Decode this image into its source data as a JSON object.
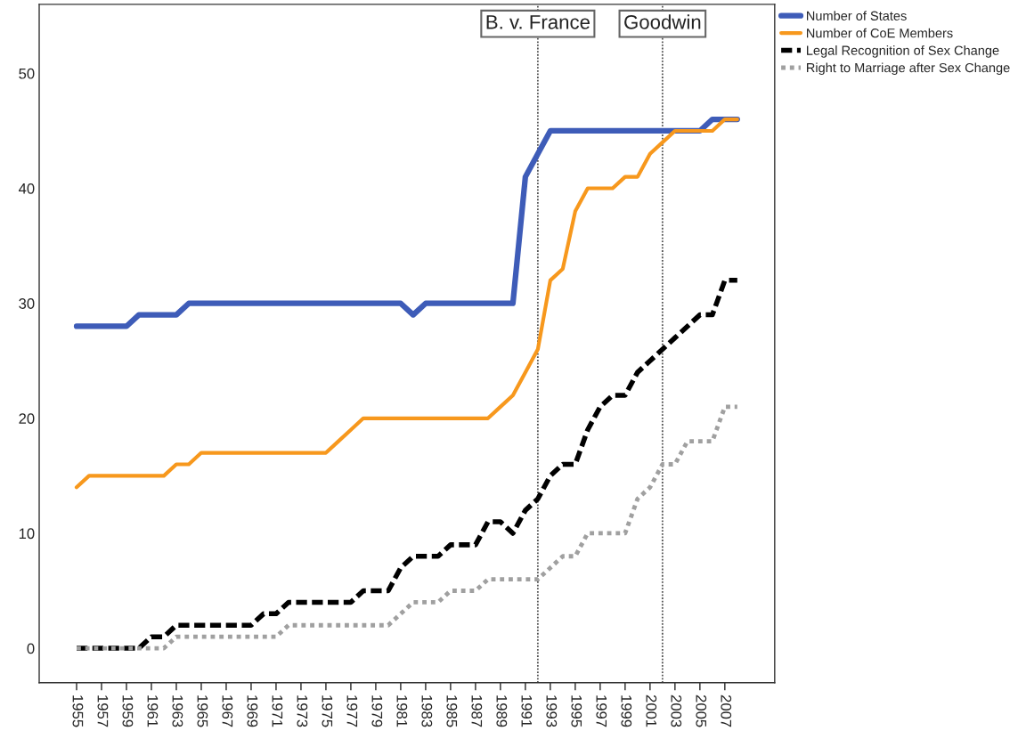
{
  "chart_data": {
    "type": "line",
    "x": [
      1955,
      1956,
      1957,
      1958,
      1959,
      1960,
      1961,
      1962,
      1963,
      1964,
      1965,
      1966,
      1967,
      1968,
      1969,
      1970,
      1971,
      1972,
      1973,
      1974,
      1975,
      1976,
      1977,
      1978,
      1979,
      1980,
      1981,
      1982,
      1983,
      1984,
      1985,
      1986,
      1987,
      1988,
      1989,
      1990,
      1991,
      1992,
      1993,
      1994,
      1995,
      1996,
      1997,
      1998,
      1999,
      2000,
      2001,
      2002,
      2003,
      2004,
      2005,
      2006,
      2007,
      2008
    ],
    "series": [
      {
        "name": "Number of States",
        "color": "#3e5cb8",
        "line_style": "solid",
        "values": [
          28,
          28,
          28,
          28,
          28,
          29,
          29,
          29,
          29,
          30,
          30,
          30,
          30,
          30,
          30,
          30,
          30,
          30,
          30,
          30,
          30,
          30,
          30,
          30,
          30,
          30,
          30,
          29,
          30,
          30,
          30,
          30,
          30,
          30,
          30,
          30,
          41,
          43,
          45,
          45,
          45,
          45,
          45,
          45,
          45,
          45,
          45,
          45,
          45,
          45,
          45,
          46,
          46,
          46
        ]
      },
      {
        "name": "Number of CoE Members",
        "color": "#f7981d",
        "line_style": "solid",
        "values": [
          14,
          15,
          15,
          15,
          15,
          15,
          15,
          15,
          16,
          16,
          17,
          17,
          17,
          17,
          17,
          17,
          17,
          17,
          17,
          17,
          17,
          18,
          19,
          20,
          20,
          20,
          20,
          20,
          20,
          20,
          20,
          20,
          20,
          20,
          21,
          22,
          24,
          26,
          32,
          33,
          38,
          40,
          40,
          40,
          41,
          41,
          43,
          44,
          45,
          45,
          45,
          45,
          46,
          46
        ]
      },
      {
        "name": "Legal Recognition of Sex Change",
        "color": "#000000",
        "line_style": "dashed",
        "values": [
          0,
          0,
          0,
          0,
          0,
          0,
          1,
          1,
          2,
          2,
          2,
          2,
          2,
          2,
          2,
          3,
          3,
          4,
          4,
          4,
          4,
          4,
          4,
          5,
          5,
          5,
          7,
          8,
          8,
          8,
          9,
          9,
          9,
          11,
          11,
          10,
          12,
          13,
          15,
          16,
          16,
          19,
          21,
          22,
          22,
          24,
          25,
          26,
          27,
          28,
          29,
          29,
          32,
          32
        ]
      },
      {
        "name": "Right to Marriage after Sex Change",
        "color": "#a0a0a0",
        "line_style": "dotted",
        "values": [
          0,
          0,
          0,
          0,
          0,
          0,
          0,
          0,
          1,
          1,
          1,
          1,
          1,
          1,
          1,
          1,
          1,
          2,
          2,
          2,
          2,
          2,
          2,
          2,
          2,
          2,
          3,
          4,
          4,
          4,
          5,
          5,
          5,
          6,
          6,
          6,
          6,
          6,
          7,
          8,
          8,
          10,
          10,
          10,
          10,
          13,
          14,
          16,
          16,
          18,
          18,
          18,
          21,
          21
        ]
      }
    ],
    "xlim": [
      1952,
      2011
    ],
    "xticks": [
      1955,
      1957,
      1959,
      1961,
      1963,
      1965,
      1967,
      1969,
      1971,
      1973,
      1975,
      1977,
      1979,
      1981,
      1983,
      1985,
      1987,
      1989,
      1991,
      1993,
      1995,
      1997,
      1999,
      2001,
      2003,
      2005,
      2007
    ],
    "ylim": [
      -3,
      56
    ],
    "yticks": [
      0,
      10,
      20,
      30,
      40,
      50
    ],
    "ref_lines": [
      {
        "axis": "x",
        "value": 1992,
        "label": "B. v. France",
        "color": "#555555",
        "line_style": "dotted"
      },
      {
        "axis": "x",
        "value": 2002,
        "label": "Goodwin",
        "color": "#555555",
        "line_style": "dotted"
      }
    ],
    "grid": false,
    "legend": "top right",
    "marker": "none"
  }
}
